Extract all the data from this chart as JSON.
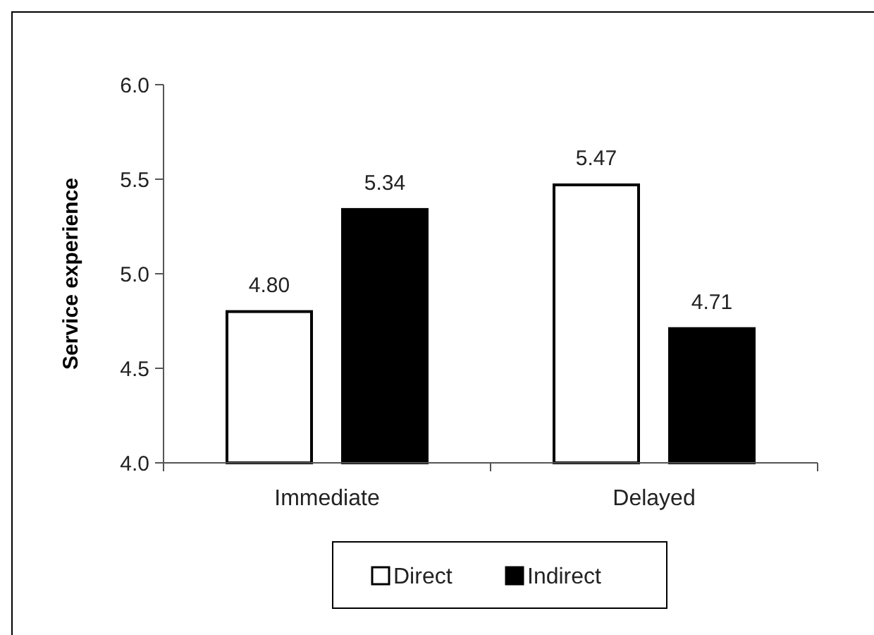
{
  "chart_data": {
    "type": "bar",
    "ylabel": "Service experience",
    "categories": [
      "Immediate",
      "Delayed"
    ],
    "series": [
      {
        "name": "Direct",
        "color": "#ffffff",
        "values": [
          4.8,
          5.47
        ],
        "value_labels": [
          "4.80",
          "5.47"
        ]
      },
      {
        "name": "Indirect",
        "color": "#000000",
        "values": [
          5.34,
          4.71
        ],
        "value_labels": [
          "5.34",
          "4.71"
        ]
      }
    ],
    "ylim": [
      4.0,
      6.0
    ],
    "yticks": [
      {
        "value": 4,
        "label": "4.0"
      },
      {
        "value": 4.5,
        "label": "4.5"
      },
      {
        "value": 5,
        "label": "5.0"
      },
      {
        "value": 5.5,
        "label": "5.5"
      },
      {
        "value": 6,
        "label": "6.0"
      }
    ],
    "legend": "bottom"
  }
}
